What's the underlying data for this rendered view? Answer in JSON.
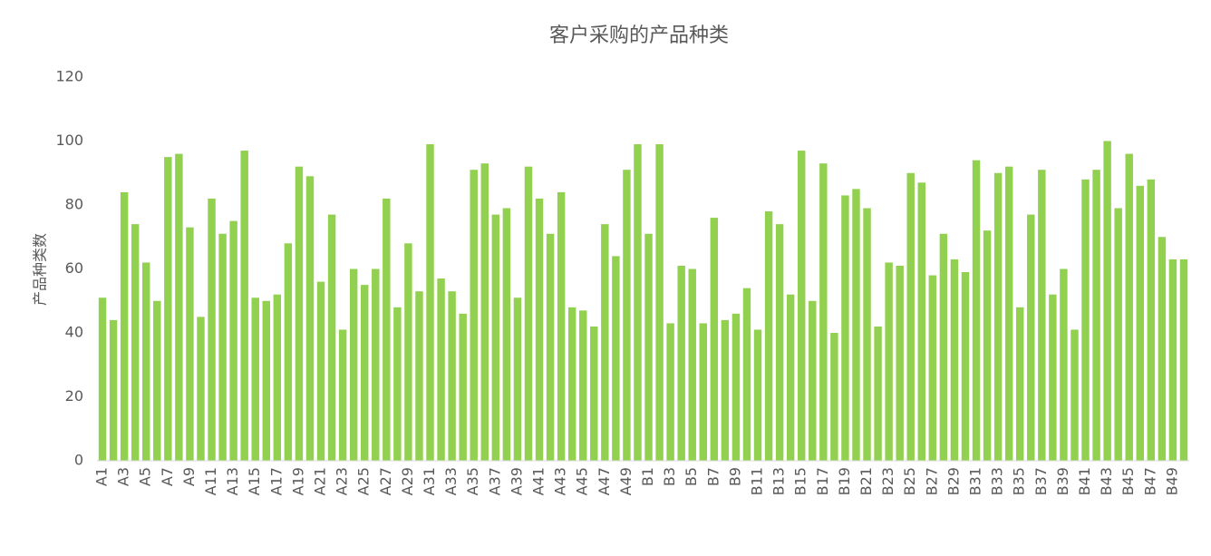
{
  "chart_data": {
    "type": "bar",
    "title": "客户采购的产品种类",
    "y_label": "产品种类数",
    "categories": [
      "A1",
      null,
      "A3",
      null,
      "A5",
      null,
      "A7",
      null,
      "A9",
      null,
      "A11",
      null,
      "A13",
      null,
      "A15",
      null,
      "A17",
      null,
      "A19",
      null,
      "A21",
      null,
      "A23",
      null,
      "A25",
      null,
      "A27",
      null,
      "A29",
      null,
      "A31",
      null,
      "A33",
      null,
      "A35",
      null,
      "A37",
      null,
      "A39",
      null,
      "A41",
      null,
      "A43",
      null,
      "A45",
      null,
      "A47",
      null,
      "A49",
      null,
      "B1",
      null,
      "B3",
      null,
      "B5",
      null,
      "B7",
      null,
      "B9",
      null,
      "B11",
      null,
      "B13",
      null,
      "B15",
      null,
      "B17",
      null,
      "B19",
      null,
      "B21",
      null,
      "B23",
      null,
      "B25",
      null,
      "B27",
      null,
      "B29",
      null,
      "B31",
      null,
      "B33",
      null,
      "B35",
      null,
      "B37",
      null,
      "B39",
      null,
      "B41",
      null,
      "B43",
      null,
      "B45",
      null,
      "B47",
      null,
      "B49",
      null
    ],
    "values": [
      51,
      44,
      84,
      74,
      62,
      50,
      95,
      96,
      73,
      45,
      82,
      71,
      75,
      97,
      51,
      50,
      52,
      68,
      92,
      89,
      56,
      77,
      41,
      60,
      55,
      60,
      82,
      48,
      68,
      53,
      99,
      57,
      53,
      46,
      91,
      93,
      77,
      79,
      51,
      92,
      82,
      71,
      84,
      48,
      47,
      42,
      74,
      64,
      91,
      99,
      71,
      99,
      43,
      61,
      60,
      43,
      76,
      44,
      46,
      54,
      41,
      78,
      74,
      52,
      97,
      50,
      93,
      40,
      83,
      85,
      79,
      42,
      62,
      61,
      90,
      87,
      58,
      71,
      63,
      59,
      94,
      72,
      90,
      92,
      48,
      77,
      91,
      52,
      60,
      41,
      88,
      91,
      100,
      79,
      96,
      86,
      88,
      70,
      63,
      63
    ],
    "color": "#92d050",
    "ylim": [
      0,
      120
    ],
    "yticks": [
      0,
      20,
      40,
      60,
      80,
      100,
      120
    ],
    "grid": false
  }
}
